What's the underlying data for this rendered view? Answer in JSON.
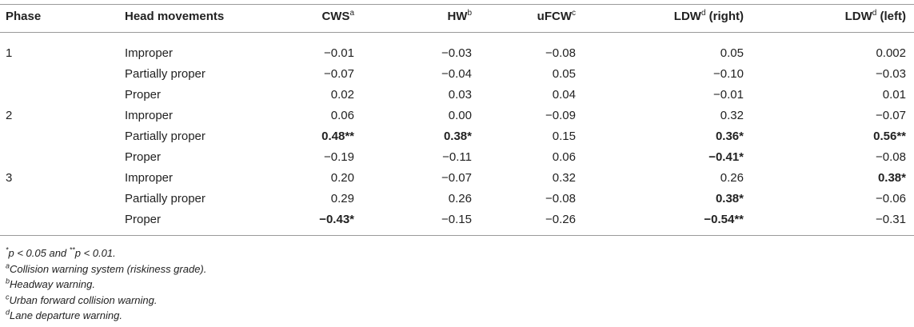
{
  "header": {
    "phase": "Phase",
    "head_movements": "Head movements",
    "cws": "CWS",
    "cws_sup": "a",
    "hw": "HW",
    "hw_sup": "b",
    "ufcw": "uFCW",
    "ufcw_sup": "c",
    "ldw_right": "LDW",
    "ldw_right_sup": "d",
    "ldw_right_suffix": " (right)",
    "ldw_left": "LDW",
    "ldw_left_sup": "d",
    "ldw_left_suffix": " (left)"
  },
  "rows": [
    {
      "phase": "1",
      "hm": "Improper",
      "cws": "−0.01",
      "hw": "−0.03",
      "ufcw": "−0.08",
      "ldw_right": "0.05",
      "ldw_left": "0.002"
    },
    {
      "phase": "",
      "hm": "Partially proper",
      "cws": "−0.07",
      "hw": "−0.04",
      "ufcw": "0.05",
      "ldw_right": "−0.10",
      "ldw_left": "−0.03"
    },
    {
      "phase": "",
      "hm": "Proper",
      "cws": "0.02",
      "hw": "0.03",
      "ufcw": "0.04",
      "ldw_right": "−0.01",
      "ldw_left": "0.01"
    },
    {
      "phase": "2",
      "hm": "Improper",
      "cws": "0.06",
      "hw": "0.00",
      "ufcw": "−0.09",
      "ldw_right": "0.32",
      "ldw_left": "−0.07"
    },
    {
      "phase": "",
      "hm": "Partially proper",
      "cws": "0.48**",
      "hw": "0.38*",
      "ufcw": "0.15",
      "ldw_right": "0.36*",
      "ldw_left": "0.56**"
    },
    {
      "phase": "",
      "hm": "Proper",
      "cws": "−0.19",
      "hw": "−0.11",
      "ufcw": "0.06",
      "ldw_right": "−0.41*",
      "ldw_left": "−0.08"
    },
    {
      "phase": "3",
      "hm": "Improper",
      "cws": "0.20",
      "hw": "−0.07",
      "ufcw": "0.32",
      "ldw_right": "0.26",
      "ldw_left": "0.38*"
    },
    {
      "phase": "",
      "hm": "Partially proper",
      "cws": "0.29",
      "hw": "0.26",
      "ufcw": "−0.08",
      "ldw_right": "0.38*",
      "ldw_left": "−0.06"
    },
    {
      "phase": "",
      "hm": "Proper",
      "cws": "−0.43*",
      "hw": "−0.15",
      "ufcw": "−0.26",
      "ldw_right": "−0.54**",
      "ldw_left": "−0.31"
    }
  ],
  "notes": {
    "sig": {
      "a_sup": "*",
      "a_text": "p < 0.05 and ",
      "b_sup": "**",
      "b_text": "p < 0.01."
    },
    "a": {
      "sup": "a",
      "text": "Collision warning system (riskiness grade)."
    },
    "b": {
      "sup": "b",
      "text": "Headway warning."
    },
    "c": {
      "sup": "c",
      "text": "Urban forward collision warning."
    },
    "d": {
      "sup": "d",
      "text": "Lane departure warning."
    }
  }
}
